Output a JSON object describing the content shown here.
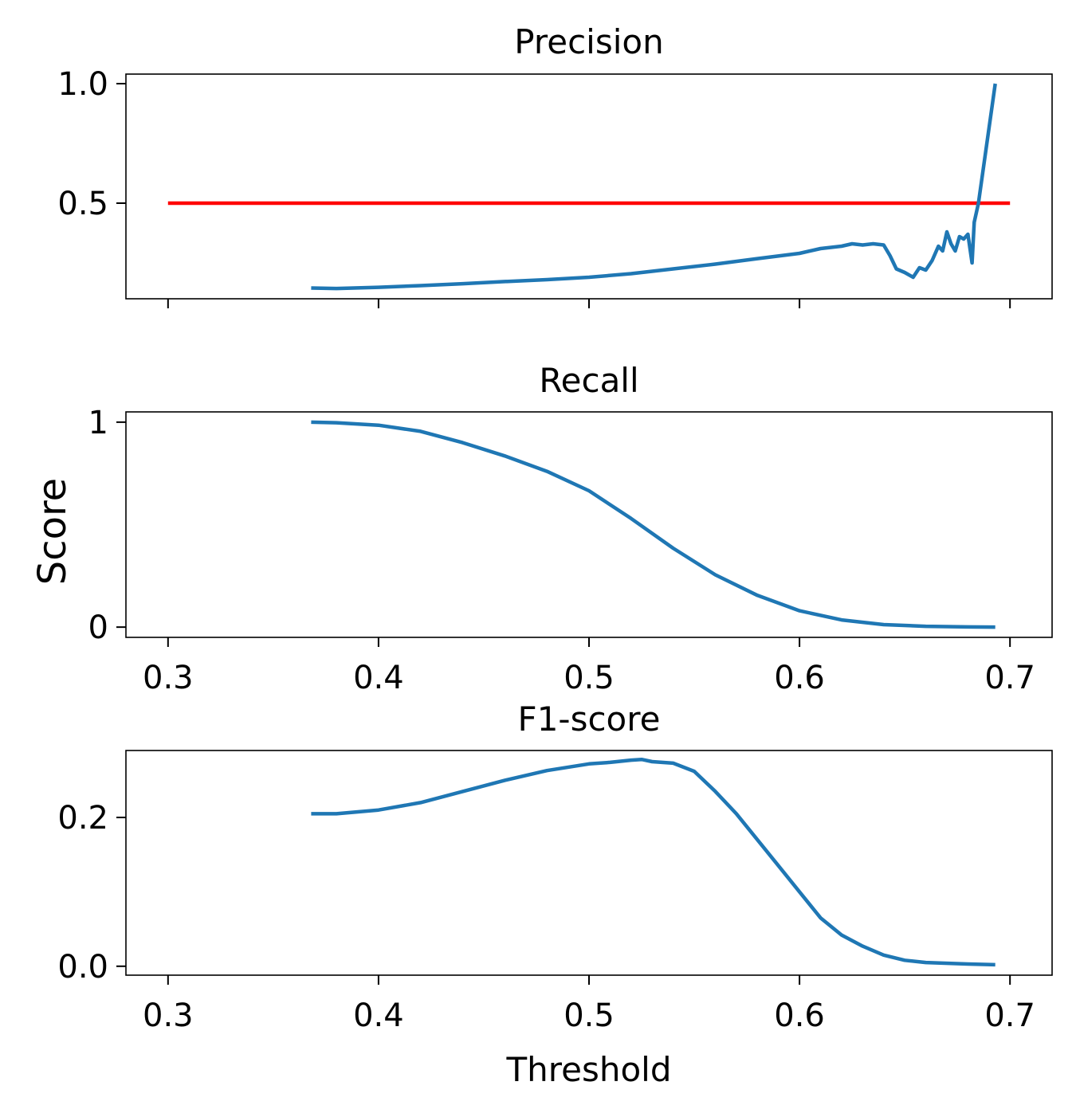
{
  "colors": {
    "series": "#1f77b4",
    "reference": "#ff0000",
    "axes": "#000000",
    "background": "#ffffff"
  },
  "figure": {
    "ylabel": "Score",
    "xlabel": "Threshold"
  },
  "chart_data": [
    {
      "type": "line",
      "title": "Precision",
      "xlabel": "",
      "ylabel": "",
      "xlim": [
        0.28,
        0.72
      ],
      "ylim": [
        0.1,
        1.04
      ],
      "xticks": [
        0.3,
        0.4,
        0.5,
        0.6,
        0.7
      ],
      "xtick_labels_visible": false,
      "yticks": [
        0.5,
        1.0
      ],
      "ytick_labels": [
        "0.5",
        "1.0"
      ],
      "grid": false,
      "series": [
        {
          "role": "reference-line",
          "x": [
            0.3,
            0.7
          ],
          "y": [
            0.5,
            0.5
          ]
        },
        {
          "role": "metric",
          "x": [
            0.368,
            0.38,
            0.4,
            0.42,
            0.44,
            0.46,
            0.48,
            0.5,
            0.52,
            0.54,
            0.56,
            0.58,
            0.6,
            0.61,
            0.615,
            0.62,
            0.625,
            0.63,
            0.635,
            0.64,
            0.643,
            0.646,
            0.65,
            0.654,
            0.657,
            0.66,
            0.663,
            0.666,
            0.668,
            0.67,
            0.672,
            0.674,
            0.676,
            0.678,
            0.68,
            0.682,
            0.683,
            0.685,
            0.693
          ],
          "y": [
            0.145,
            0.143,
            0.148,
            0.155,
            0.163,
            0.172,
            0.18,
            0.19,
            0.205,
            0.225,
            0.245,
            0.268,
            0.29,
            0.31,
            0.315,
            0.32,
            0.33,
            0.325,
            0.33,
            0.325,
            0.28,
            0.225,
            0.21,
            0.19,
            0.23,
            0.22,
            0.26,
            0.32,
            0.3,
            0.38,
            0.33,
            0.3,
            0.36,
            0.35,
            0.37,
            0.25,
            0.42,
            0.5,
            1.0
          ]
        }
      ]
    },
    {
      "type": "line",
      "title": "Recall",
      "xlabel": "",
      "ylabel": "",
      "xlim": [
        0.28,
        0.72
      ],
      "ylim": [
        -0.05,
        1.05
      ],
      "xticks": [
        0.3,
        0.4,
        0.5,
        0.6,
        0.7
      ],
      "xtick_labels": [
        "0.3",
        "0.4",
        "0.5",
        "0.6",
        "0.7"
      ],
      "yticks": [
        0,
        1
      ],
      "ytick_labels": [
        "0",
        "1"
      ],
      "grid": false,
      "series": [
        {
          "x": [
            0.368,
            0.38,
            0.4,
            0.42,
            0.44,
            0.46,
            0.48,
            0.5,
            0.52,
            0.54,
            0.56,
            0.58,
            0.6,
            0.62,
            0.64,
            0.66,
            0.68,
            0.693
          ],
          "y": [
            1.0,
            0.997,
            0.985,
            0.955,
            0.9,
            0.835,
            0.76,
            0.665,
            0.53,
            0.385,
            0.255,
            0.155,
            0.08,
            0.035,
            0.012,
            0.004,
            0.001,
            0.0
          ]
        }
      ]
    },
    {
      "type": "line",
      "title": "F1-score",
      "xlabel": "Threshold",
      "ylabel": "",
      "xlim": [
        0.28,
        0.72
      ],
      "ylim": [
        -0.012,
        0.29
      ],
      "xticks": [
        0.3,
        0.4,
        0.5,
        0.6,
        0.7
      ],
      "xtick_labels": [
        "0.3",
        "0.4",
        "0.5",
        "0.6",
        "0.7"
      ],
      "yticks": [
        0.0,
        0.2
      ],
      "ytick_labels": [
        "0.0",
        "0.2"
      ],
      "grid": false,
      "series": [
        {
          "x": [
            0.368,
            0.38,
            0.4,
            0.42,
            0.44,
            0.46,
            0.48,
            0.5,
            0.51,
            0.52,
            0.525,
            0.53,
            0.54,
            0.55,
            0.56,
            0.57,
            0.58,
            0.59,
            0.6,
            0.61,
            0.62,
            0.63,
            0.64,
            0.65,
            0.66,
            0.68,
            0.693
          ],
          "y": [
            0.205,
            0.205,
            0.21,
            0.22,
            0.235,
            0.25,
            0.263,
            0.272,
            0.274,
            0.277,
            0.278,
            0.275,
            0.273,
            0.262,
            0.235,
            0.205,
            0.17,
            0.135,
            0.1,
            0.065,
            0.042,
            0.027,
            0.015,
            0.008,
            0.005,
            0.003,
            0.002
          ]
        }
      ]
    }
  ]
}
